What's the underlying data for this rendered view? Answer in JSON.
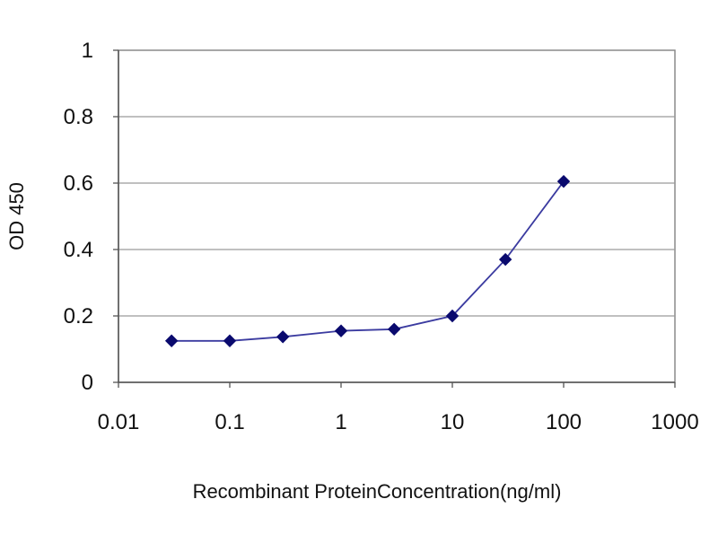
{
  "chart_data": {
    "type": "line",
    "xscale": "log",
    "xlabel": "Recombinant ProteinConcentration(ng/ml)",
    "ylabel": "OD 450",
    "xlim": [
      0.01,
      1000
    ],
    "ylim": [
      0,
      1
    ],
    "xticks": [
      "0.01",
      "0.1",
      "1",
      "10",
      "100",
      "1000"
    ],
    "yticks": [
      "0",
      "0.2",
      "0.4",
      "0.6",
      "0.8",
      "1"
    ],
    "grid": "horizontal",
    "legend": "none",
    "series": [
      {
        "color": "#3b3ba0",
        "marker_color": "#0a0a6e",
        "marker": "diamond",
        "x": [
          0.03,
          0.1,
          0.3,
          1,
          3,
          10,
          30,
          100
        ],
        "y": [
          0.125,
          0.125,
          0.137,
          0.155,
          0.16,
          0.2,
          0.37,
          0.605
        ]
      }
    ]
  }
}
